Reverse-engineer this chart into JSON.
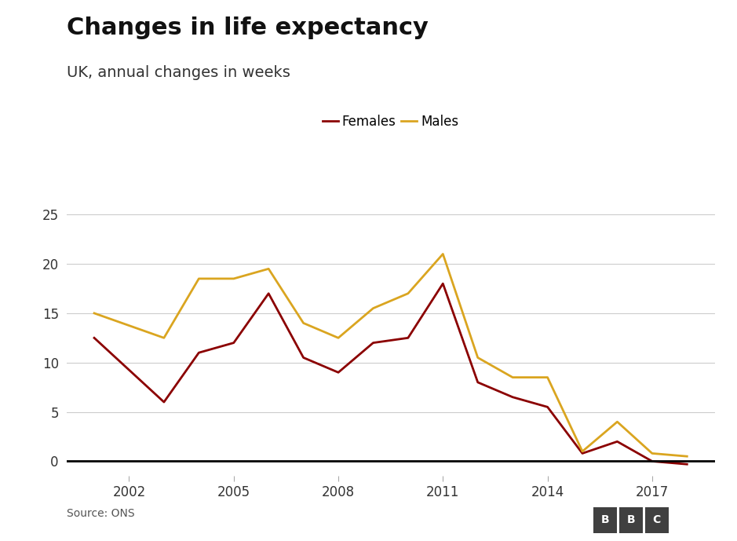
{
  "title": "Changes in life expectancy",
  "subtitle": "UK, annual changes in weeks",
  "source": "Source: ONS",
  "bbc_label": "BBC",
  "years_females": [
    2001,
    2003,
    2004,
    2005,
    2006,
    2007,
    2008,
    2009,
    2010,
    2011,
    2012,
    2013,
    2014,
    2015,
    2016,
    2017,
    2018
  ],
  "females": [
    12.5,
    6.0,
    11.0,
    12.0,
    17.0,
    10.5,
    9.0,
    12.0,
    12.5,
    18.0,
    8.0,
    6.5,
    5.5,
    0.8,
    2.0,
    0.0,
    -0.3
  ],
  "years_males": [
    2001,
    2003,
    2004,
    2005,
    2006,
    2007,
    2008,
    2009,
    2010,
    2011,
    2012,
    2013,
    2014,
    2015,
    2016,
    2017,
    2018
  ],
  "males": [
    15.0,
    12.5,
    18.5,
    18.5,
    19.5,
    14.0,
    12.5,
    15.5,
    17.0,
    21.0,
    10.5,
    8.5,
    8.5,
    1.0,
    4.0,
    0.8,
    0.5
  ],
  "female_color": "#8B0000",
  "male_color": "#DAA520",
  "ylim": [
    -1.5,
    27
  ],
  "yticks": [
    0,
    5,
    10,
    15,
    20,
    25
  ],
  "xticks": [
    2002,
    2005,
    2008,
    2011,
    2014,
    2017
  ],
  "xlim": [
    2000.2,
    2018.8
  ],
  "title_fontsize": 22,
  "subtitle_fontsize": 14,
  "legend_fontsize": 12,
  "tick_fontsize": 12,
  "background_color": "#ffffff",
  "grid_color": "#cccccc",
  "zero_line_color": "#000000"
}
